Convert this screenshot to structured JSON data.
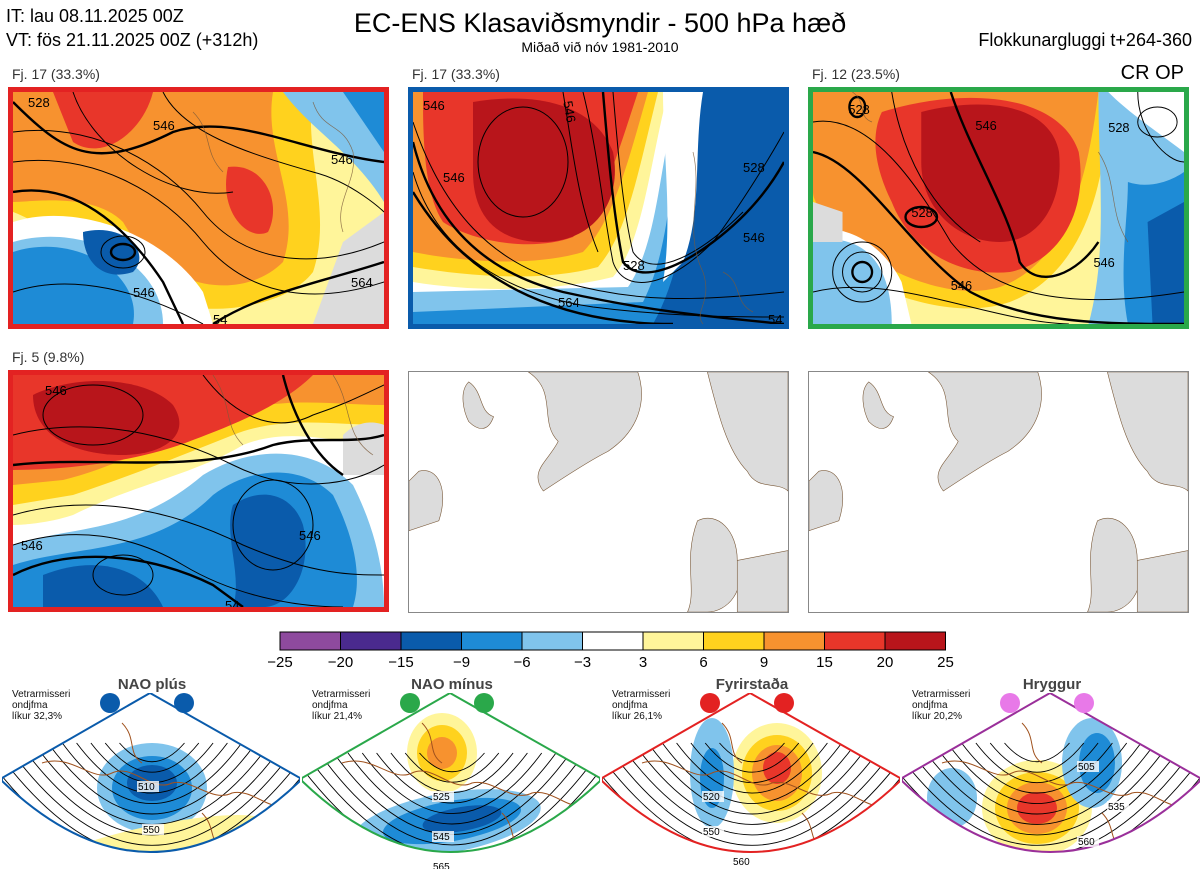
{
  "header": {
    "it": "IT: lau 08.11.2025 00Z",
    "vt": "VT: fös 21.11.2025 00Z  (+312h)",
    "title": "EC-ENS Klasaviðsmyndir - 500 hPa hæð",
    "subtitle": "Miðað við nóv 1981-2010",
    "window": "Flokkunargluggi t+264-360"
  },
  "clusters": [
    {
      "label": "Fj. 17 (33.3%)",
      "members": 17,
      "percent": 33.3,
      "border": "#e32222",
      "contours": [
        "528",
        "546",
        "546",
        "546",
        "564",
        "54"
      ]
    },
    {
      "label": "Fj. 17 (33.3%)",
      "members": 17,
      "percent": 33.3,
      "border": "#0a5bab",
      "contours": [
        "546",
        "546",
        "546",
        "528",
        "528",
        "546",
        "564",
        "54"
      ]
    },
    {
      "label": "Fj. 12 (23.5%)",
      "members": 12,
      "percent": 23.5,
      "border": "#2aa84a",
      "contours": [
        "528",
        "546",
        "528",
        "528",
        "546",
        "546"
      ]
    },
    {
      "label": "Fj. 5 (9.8%)",
      "members": 5,
      "percent": 9.8,
      "border": "#e32222",
      "contours": [
        "546",
        "546",
        "546",
        "54"
      ]
    }
  ],
  "corner_tag": "CR OP",
  "colorbar": {
    "ticks": [
      "−25",
      "−20",
      "−15",
      "−9",
      "−6",
      "−3",
      "3",
      "6",
      "9",
      "15",
      "20",
      "25"
    ],
    "colors": [
      "#8e4a9e",
      "#4a2a8e",
      "#0a5bab",
      "#1e8bd6",
      "#80c4ec",
      "#ffffff",
      "#fff59a",
      "#ffd21e",
      "#f7922f",
      "#e8362a",
      "#b8151b"
    ]
  },
  "regimes": [
    {
      "name": "NAO plús",
      "note": [
        "Vetrarmisseri",
        "ondjfma",
        "líkur 32,3%"
      ],
      "color": "#0a5bab",
      "contours": [
        "510",
        "550"
      ]
    },
    {
      "name": "NAO mínus",
      "note": [
        "Vetrarmisseri",
        "ondjfma",
        "líkur 21,4%"
      ],
      "color": "#2aa84a",
      "contours": [
        "525",
        "545",
        "565"
      ]
    },
    {
      "name": "Fyrirstaða",
      "note": [
        "Vetrarmisseri",
        "ondjfma",
        "líkur 26,1%"
      ],
      "color": "#e32222",
      "contours": [
        "520",
        "550",
        "560"
      ]
    },
    {
      "name": "Hryggur",
      "note": [
        "Vetrarmisseri",
        "ondjfma",
        "líkur 20,2%"
      ],
      "color": "#9a2f9a",
      "contours": [
        "505",
        "535",
        "560"
      ]
    }
  ],
  "colors": {
    "red": "#e32222",
    "blue": "#0a5bab",
    "green": "#2aa84a",
    "purple": "#9a2f9a",
    "land": "#dcdcdc",
    "coast": "#7a5a3a"
  }
}
